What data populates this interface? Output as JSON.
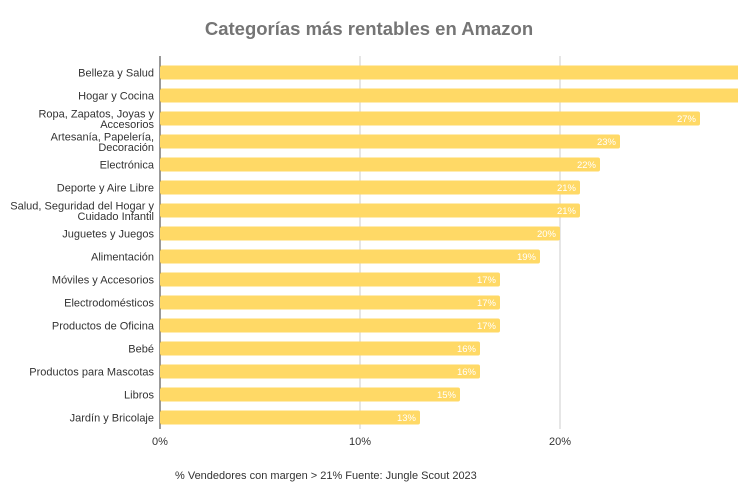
{
  "chart_data": {
    "type": "bar",
    "orientation": "horizontal",
    "title": "Categorías más rentables en Amazon",
    "caption": "% Vendedores con margen > 21% Fuente: Jungle Scout 2023",
    "categories": [
      "Belleza y Salud",
      "Hogar y Cocina",
      "Ropa, Zapatos, Joyas y\nAccesorios",
      "Artesanía, Papelería,\nDecoración",
      "Electrónica",
      "Deporte y Aire Libre",
      "Salud, Seguridad del Hogar y\nCuidado Infantil",
      "Juguetes y Juegos",
      "Alimentación",
      "Móviles y Accesorios",
      "Electrodomésticos",
      "Productos de Oficina",
      "Bebé",
      "Productos para Mascotas",
      "Libros",
      "Jardín y Bricolaje"
    ],
    "values": [
      30,
      29,
      27,
      23,
      22,
      21,
      21,
      20,
      19,
      17,
      17,
      17,
      16,
      16,
      15,
      13
    ],
    "data_labels": [
      "",
      "",
      "27%",
      "23%",
      "22%",
      "21%",
      "21%",
      "20%",
      "19%",
      "17%",
      "17%",
      "17%",
      "16%",
      "16%",
      "15%",
      "13%"
    ],
    "xticks": [
      {
        "value": 0,
        "label": "0%"
      },
      {
        "value": 10,
        "label": "10%"
      },
      {
        "value": 20,
        "label": "20%"
      }
    ],
    "xlim": [
      0,
      28.9
    ],
    "grid": true,
    "legend": "none",
    "bar_color": "#ffd966",
    "grid_color": "#cccccc",
    "axis_color": "#333333"
  }
}
